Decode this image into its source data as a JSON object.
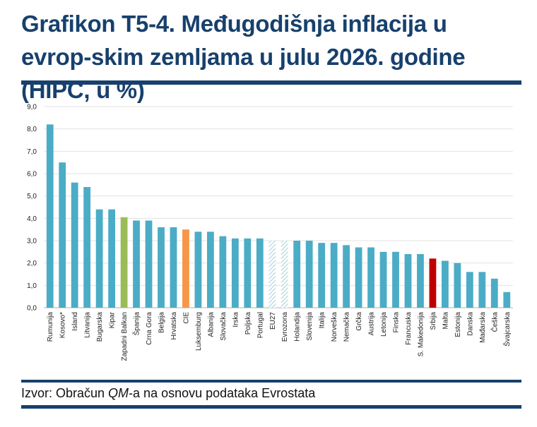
{
  "title": "Grafikon T5-4. Međugodišnja inflacija u evrop-skim zemljama u julu 2026. godine (HIPC, u %)",
  "source": {
    "prefix": "Izvor: Obračun ",
    "emph": "QM",
    "suffix": "-a na osnovu podataka Evrostata"
  },
  "colors": {
    "default": "#4bacc6",
    "zapadni_balkan": "#9bbb59",
    "cie": "#f79646",
    "srbija": "#c00000",
    "hatched": "#b7dee8",
    "frame": "#17406d"
  },
  "chart_data": {
    "type": "bar",
    "title": "",
    "xlabel": "",
    "ylabel": "",
    "ylim": [
      0,
      9
    ],
    "yticks": [
      "0,0",
      "1,0",
      "2,0",
      "3,0",
      "4,0",
      "5,0",
      "6,0",
      "7,0",
      "8,0",
      "9,0"
    ],
    "grid": true,
    "categories": [
      "Rumunija",
      "Kosovo*",
      "Island",
      "Litvanija",
      "Bugarska",
      "Kipar",
      "Zapadni Balkan",
      "Španija",
      "Crna Gora",
      "Belgija",
      "Hrvatska",
      "CIE",
      "Luksemburg",
      "Albanija",
      "Slovačka",
      "Irska",
      "Poljska",
      "Portugal",
      "EU27",
      "Evrozona",
      "Holandija",
      "Slovenija",
      "Italija",
      "Norveška",
      "Nemačka",
      "Grčka",
      "Austrija",
      "Letonija",
      "Finska",
      "Francuska",
      "S. Makedonija",
      "Srbija",
      "Malta",
      "Estonija",
      "Danska",
      "Mađarska",
      "Češka",
      "Švajcarska"
    ],
    "values": [
      8.2,
      6.5,
      5.6,
      5.4,
      4.4,
      4.4,
      4.05,
      3.9,
      3.9,
      3.6,
      3.6,
      3.5,
      3.4,
      3.4,
      3.2,
      3.1,
      3.1,
      3.1,
      3.0,
      3.0,
      3.0,
      3.0,
      2.9,
      2.9,
      2.8,
      2.7,
      2.7,
      2.5,
      2.5,
      2.4,
      2.4,
      2.2,
      2.1,
      2.0,
      1.6,
      1.6,
      1.3,
      0.7
    ],
    "highlight": {
      "Zapadni Balkan": "zapadni_balkan",
      "CIE": "cie",
      "Srbija": "srbija",
      "EU27": "hatched",
      "Evrozona": "hatched"
    }
  }
}
